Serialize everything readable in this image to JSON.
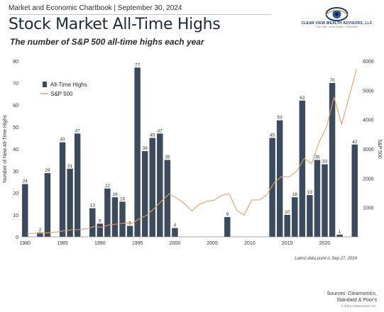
{
  "header": {
    "source_line": "Market and Economic Chartbook | September 30, 2024",
    "title": "Stock Market All-Time Highs",
    "subtitle": "The number of S&P 500 all-time highs each year"
  },
  "logo": {
    "name": "CLEAR VIEW WEALTH ADVISORS, LLC",
    "tagline": "Plan Well · Invest Wisely · Live Better"
  },
  "footer": {
    "note": "Latest data point is Sep 27, 2024",
    "sources_line1": "Sources: Clearnomics,",
    "sources_line2": "Standard & Poor's",
    "copyright": "© 2024 Clearnomics, Inc."
  },
  "chart_data": {
    "type": "bar",
    "ylabel": "Number of New All-Time Highs",
    "y2label": "S&P 500",
    "ylim": [
      0,
      80
    ],
    "y2lim": [
      0,
      6000
    ],
    "xlim": [
      1980,
      2025
    ],
    "yticks": [
      0,
      10,
      20,
      30,
      40,
      50,
      60,
      70,
      80
    ],
    "y2ticks": [
      1000,
      2000,
      3000,
      4000,
      5000,
      6000
    ],
    "xticks": [
      1980,
      1985,
      1990,
      1995,
      2000,
      2005,
      2010,
      2015,
      2020
    ],
    "legend_position": "top-left",
    "colors": {
      "bars": "#3b4a5c",
      "line": "#e0a163"
    },
    "series": [
      {
        "name": "All-Time Highs",
        "kind": "bar",
        "points": [
          [
            1980,
            24
          ],
          [
            1982,
            2
          ],
          [
            1983,
            29
          ],
          [
            1985,
            43
          ],
          [
            1986,
            31
          ],
          [
            1987,
            47
          ],
          [
            1989,
            13
          ],
          [
            1990,
            6
          ],
          [
            1991,
            22
          ],
          [
            1992,
            18
          ],
          [
            1993,
            16
          ],
          [
            1994,
            5
          ],
          [
            1995,
            77
          ],
          [
            1996,
            39
          ],
          [
            1997,
            45
          ],
          [
            1998,
            47
          ],
          [
            1999,
            35
          ],
          [
            2000,
            4
          ],
          [
            2007,
            9
          ],
          [
            2013,
            45
          ],
          [
            2014,
            53
          ],
          [
            2015,
            10
          ],
          [
            2016,
            18
          ],
          [
            2017,
            62
          ],
          [
            2018,
            19
          ],
          [
            2019,
            35
          ],
          [
            2020,
            33
          ],
          [
            2021,
            70
          ],
          [
            2022,
            1
          ],
          [
            2024,
            42
          ]
        ]
      },
      {
        "name": "S&P 500",
        "kind": "line",
        "axis": "right",
        "points": [
          [
            1980,
            107
          ],
          [
            1981,
            122
          ],
          [
            1982,
            119
          ],
          [
            1983,
            140
          ],
          [
            1984,
            164
          ],
          [
            1985,
            211
          ],
          [
            1986,
            242
          ],
          [
            1987,
            247
          ],
          [
            1988,
            277
          ],
          [
            1989,
            353
          ],
          [
            1990,
            330
          ],
          [
            1991,
            417
          ],
          [
            1992,
            435
          ],
          [
            1993,
            466
          ],
          [
            1994,
            459
          ],
          [
            1995,
            615
          ],
          [
            1996,
            740
          ],
          [
            1997,
            970
          ],
          [
            1998,
            1229
          ],
          [
            1999,
            1469
          ],
          [
            2000,
            1320
          ],
          [
            2001,
            1148
          ],
          [
            2002,
            880
          ],
          [
            2003,
            1111
          ],
          [
            2004,
            1211
          ],
          [
            2005,
            1248
          ],
          [
            2006,
            1418
          ],
          [
            2007,
            1468
          ],
          [
            2008,
            903
          ],
          [
            2009,
            740
          ],
          [
            2010,
            1257
          ],
          [
            2011,
            1257
          ],
          [
            2012,
            1426
          ],
          [
            2013,
            1848
          ],
          [
            2014,
            2058
          ],
          [
            2015,
            2043
          ],
          [
            2016,
            2238
          ],
          [
            2017,
            2673
          ],
          [
            2018,
            2506
          ],
          [
            2019,
            3230
          ],
          [
            2020,
            3756
          ],
          [
            2021,
            4766
          ],
          [
            2022,
            3839
          ],
          [
            2023,
            4769
          ],
          [
            2024,
            5738
          ]
        ]
      }
    ]
  }
}
